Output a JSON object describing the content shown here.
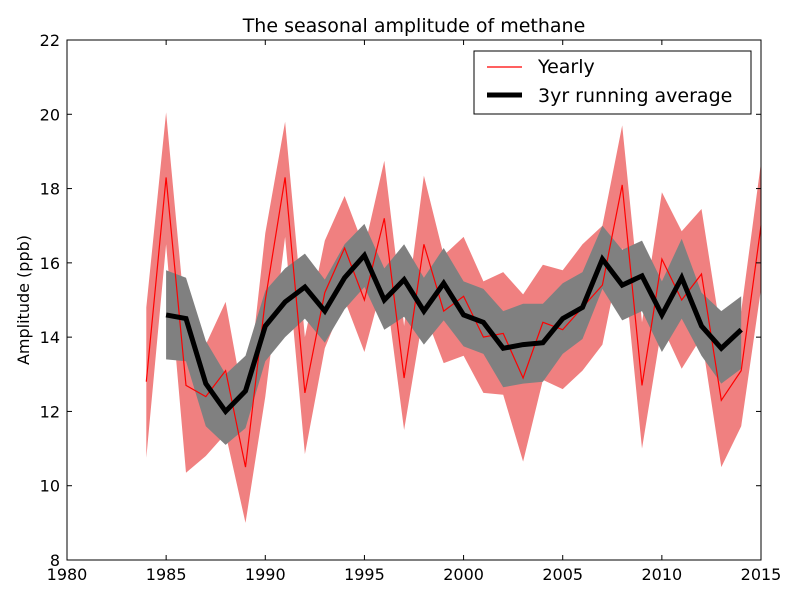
{
  "chart_data": {
    "type": "line",
    "title": "The seasonal amplitude of methane",
    "xlabel": "",
    "ylabel": "Amplitude (ppb)",
    "xlim": [
      1980,
      2015
    ],
    "ylim": [
      8,
      22
    ],
    "xticks": [
      1980,
      1985,
      1990,
      1995,
      2000,
      2005,
      2010,
      2015
    ],
    "yticks": [
      8,
      10,
      12,
      14,
      16,
      18,
      20,
      22
    ],
    "grid": false,
    "legend_position": "top-right",
    "series": [
      {
        "name": "Yearly",
        "color": "#ff0000",
        "band_color": "#f08080",
        "x": [
          1984,
          1985,
          1986,
          1987,
          1988,
          1989,
          1990,
          1991,
          1992,
          1993,
          1994,
          1995,
          1996,
          1997,
          1998,
          1999,
          2000,
          2001,
          2002,
          2003,
          2004,
          2005,
          2006,
          2007,
          2008,
          2009,
          2010,
          2011,
          2012,
          2013,
          2014,
          2015
        ],
        "y": [
          12.8,
          18.3,
          12.7,
          12.4,
          13.1,
          10.5,
          15.0,
          18.3,
          12.5,
          15.2,
          16.4,
          15.0,
          17.2,
          12.9,
          16.5,
          14.7,
          15.1,
          14.0,
          14.1,
          12.9,
          14.4,
          14.2,
          14.8,
          15.4,
          18.1,
          12.7,
          16.1,
          15.0,
          15.7,
          12.3,
          13.1,
          17.0
        ],
        "lower": [
          10.75,
          16.5,
          10.35,
          10.8,
          11.4,
          9.0,
          12.4,
          16.7,
          10.85,
          13.7,
          15.0,
          13.6,
          15.6,
          11.5,
          14.7,
          13.3,
          13.5,
          12.5,
          12.45,
          10.65,
          12.85,
          12.6,
          13.1,
          13.8,
          16.4,
          11.0,
          14.3,
          13.15,
          14.0,
          10.5,
          11.6,
          15.3
        ],
        "upper": [
          14.8,
          20.05,
          14.3,
          13.8,
          14.95,
          12.0,
          16.8,
          19.8,
          14.0,
          16.6,
          17.8,
          16.4,
          18.75,
          14.3,
          18.35,
          16.2,
          16.7,
          15.5,
          15.75,
          15.15,
          15.95,
          15.8,
          16.5,
          17.0,
          19.7,
          14.4,
          17.9,
          16.85,
          17.45,
          14.05,
          14.7,
          18.7
        ]
      },
      {
        "name": "3yr running average",
        "color": "#000000",
        "band_color": "#808080",
        "x": [
          1985,
          1986,
          1987,
          1988,
          1989,
          1990,
          1991,
          1992,
          1993,
          1994,
          1995,
          1996,
          1997,
          1998,
          1999,
          2000,
          2001,
          2002,
          2003,
          2004,
          2005,
          2006,
          2007,
          2008,
          2009,
          2010,
          2011,
          2012,
          2013,
          2014
        ],
        "y": [
          14.6,
          14.5,
          12.75,
          12.0,
          12.55,
          14.3,
          14.95,
          15.35,
          14.7,
          15.6,
          16.2,
          15.0,
          15.55,
          14.7,
          15.45,
          14.6,
          14.4,
          13.7,
          13.8,
          13.85,
          14.5,
          14.8,
          16.1,
          15.4,
          15.65,
          14.6,
          15.6,
          14.3,
          13.7,
          14.2
        ],
        "lower": [
          13.4,
          13.35,
          11.6,
          11.1,
          11.55,
          13.35,
          14.0,
          14.5,
          13.85,
          14.75,
          15.35,
          14.2,
          14.55,
          13.8,
          14.45,
          13.75,
          13.55,
          12.65,
          12.75,
          12.8,
          13.55,
          13.95,
          15.3,
          14.45,
          14.7,
          13.6,
          14.5,
          13.5,
          12.75,
          13.15
        ],
        "upper": [
          15.8,
          15.6,
          13.9,
          13.0,
          13.5,
          15.25,
          15.85,
          16.25,
          15.55,
          16.5,
          17.05,
          15.85,
          16.5,
          15.6,
          16.4,
          15.5,
          15.3,
          14.7,
          14.9,
          14.9,
          15.45,
          15.75,
          17.0,
          16.35,
          16.6,
          15.5,
          16.65,
          15.2,
          14.7,
          15.1
        ]
      }
    ]
  }
}
